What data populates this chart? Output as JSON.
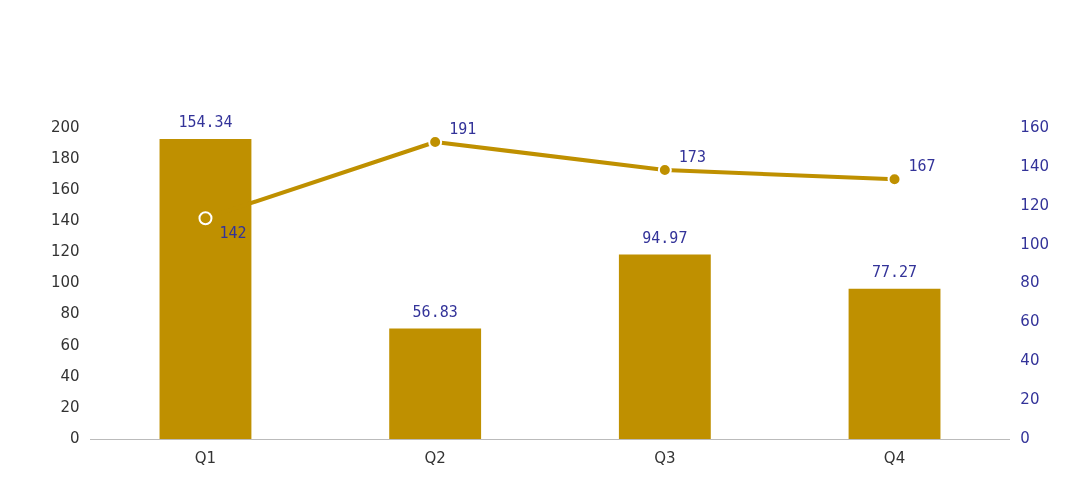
{
  "chart_data": {
    "type": "bar",
    "categories": [
      "Q1",
      "Q2",
      "Q3",
      "Q4"
    ],
    "series": [
      {
        "axis": "y2",
        "color": "#bf9000",
        "values": [
          154.34,
          56.83,
          94.97,
          77.27
        ]
      },
      {
        "type": "line",
        "axis": "y",
        "color": "#bf9000",
        "values": [
          142,
          191,
          173,
          167
        ],
        "marker": "circle"
      }
    ],
    "ylim": [
      0,
      200
    ],
    "yticks": [
      0,
      20,
      40,
      60,
      80,
      100,
      120,
      140,
      160,
      180,
      200
    ],
    "y2lim": [
      0,
      160
    ],
    "y2ticks": [
      0,
      20,
      40,
      60,
      80,
      100,
      120,
      140,
      160
    ],
    "data_labels": true,
    "grid": false,
    "legend": false
  }
}
